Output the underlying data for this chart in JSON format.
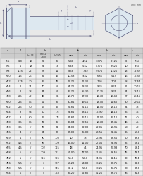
{
  "unit_note": "Unit: mm",
  "col_headers_row1": [
    "d",
    "P",
    "b",
    "",
    "",
    "ds",
    "",
    "k",
    "",
    "s",
    ""
  ],
  "col_headers_row2": [
    "",
    "",
    "L<133",
    "133<L<200",
    "L>200",
    "max",
    "min",
    "max",
    "min",
    "max",
    "min"
  ],
  "rows": [
    [
      "M5",
      "0.8",
      "16",
      "22",
      "35",
      "5.48",
      "4.52",
      "3.875",
      "3.125",
      "8",
      "7.64"
    ],
    [
      "M6",
      "1",
      "18",
      "24",
      "37",
      "6.48",
      "5.52",
      "4.375",
      "3.625",
      "10",
      "9.64"
    ],
    [
      "M8",
      "1.25",
      "22",
      "28",
      "41",
      "8.58",
      "7.42",
      "5.675",
      "4.325",
      "13",
      "12.57"
    ],
    [
      "M10",
      "1.5",
      "26",
      "32",
      "45",
      "10.58",
      "9.42",
      "6.85",
      "5.15",
      "16",
      "15.57"
    ],
    [
      "M12",
      "1.75",
      "30",
      "36",
      "49",
      "12.70",
      "11.30",
      "7.95",
      "7.05",
      "18",
      "17.57"
    ],
    [
      "M14",
      "2",
      "34",
      "40",
      "53",
      "14.70",
      "13.30",
      "9.25",
      "8.25",
      "21",
      "20.16"
    ],
    [
      "M16",
      "2",
      "38",
      "44",
      "57",
      "16.70",
      "15.30",
      "10.75",
      "9.25",
      "24",
      "23.16"
    ],
    [
      "M18",
      "2.5",
      "42",
      "48",
      "61",
      "18.70",
      "17.30",
      "12.40",
      "10.60",
      "27",
      "26.16"
    ],
    [
      "M20",
      "2.5",
      "46",
      "52",
      "65",
      "20.84",
      "19.16",
      "13.40",
      "11.60",
      "30",
      "29.16"
    ],
    [
      "M22",
      "2.5",
      "50",
      "56",
      "69",
      "22.84",
      "21.16",
      "14.90",
      "13.10",
      "34",
      "33"
    ],
    [
      "M24",
      "3",
      "54",
      "60",
      "73",
      "24.84",
      "23.16",
      "15.90",
      "14.10",
      "36",
      "35"
    ],
    [
      "M27",
      "3",
      "60",
      "66",
      "73",
      "27.84",
      "26.16",
      "17.90",
      "16.10",
      "41",
      "40"
    ],
    [
      "M30",
      "3.5",
      "66",
      "72",
      "85",
      "30.84",
      "29.16",
      "18.70",
      "17.45",
      "46",
      "45"
    ],
    [
      "M33",
      "3.5",
      "/",
      "78",
      "91",
      "34.00",
      "32.00",
      "22.05",
      "19.95",
      "50",
      "49"
    ],
    [
      "M36",
      "4",
      "/",
      "84",
      "97",
      "37.00",
      "35.00",
      "23.55",
      "21.45",
      "55",
      "53.8"
    ],
    [
      "M39",
      "4",
      "/",
      "90",
      "103",
      "40",
      "38",
      "25.95",
      "23.55",
      "60",
      "58.8"
    ],
    [
      "M42",
      "4.5",
      "/",
      "96",
      "109",
      "45.00",
      "41.00",
      "27.05",
      "24.95",
      "65",
      "63.1"
    ],
    [
      "M45",
      "4.5",
      "/",
      "102",
      "115",
      "48",
      "44",
      "24.95",
      "26.98",
      "70",
      "68.1"
    ],
    [
      "M48",
      "5",
      "/",
      "109",
      "121",
      "51.00",
      "47.00",
      "31.45",
      "28.55",
      "75",
      "73.1"
    ],
    [
      "M52",
      "5",
      "/",
      "116",
      "126",
      "56.8",
      "50.8",
      "34.35",
      "31.15",
      "80",
      "78.1"
    ],
    [
      "M56",
      "5.5",
      "/",
      "/",
      "137",
      "57.20",
      "54.80",
      "36.25",
      "33.75",
      "85",
      "82.8"
    ],
    [
      "M60",
      "5.5",
      "/",
      "/",
      "145",
      "61.2",
      "58.8",
      "38.25",
      "35.75",
      "90",
      "87.8"
    ],
    [
      "M64",
      "6",
      "/",
      "/",
      "153",
      "65.20",
      "62.80",
      "41.25",
      "38.75",
      "95",
      "92.8"
    ]
  ],
  "bg_color": "#e8e8e8",
  "table_bg": "#f2f2f2",
  "header_bg": "#cccccc",
  "row_odd_bg": "#e8e8e8",
  "row_even_bg": "#f5f5f5",
  "line_color": "#888888",
  "text_color": "#111111",
  "font_size": 2.6,
  "header_font_size": 2.6,
  "diagram_bg": "#dde8f0"
}
